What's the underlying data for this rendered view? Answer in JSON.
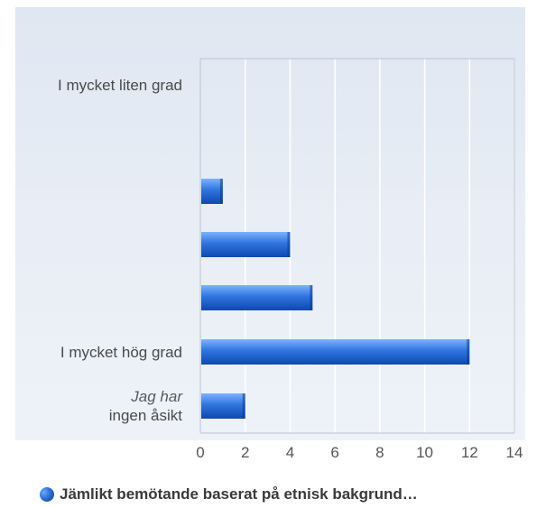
{
  "chart_data": {
    "type": "bar",
    "orientation": "horizontal",
    "categories": [
      "I mycket liten grad",
      "",
      "",
      "",
      "I mycket hög grad",
      "Jag har ingen åsikt"
    ],
    "category_lines": [
      [
        "I mycket liten grad"
      ],
      [],
      [],
      [],
      [
        "I mycket hög grad"
      ],
      [
        "Jag har",
        "ingen åsikt"
      ]
    ],
    "series": [
      {
        "name": "Jämlikt bemötande baserat på etnisk bakgrund…",
        "values": [
          0,
          1,
          4,
          5,
          12,
          2
        ]
      }
    ],
    "xlim": [
      0,
      14
    ],
    "xticks": [
      "0",
      "2",
      "4",
      "6",
      "8",
      "10",
      "12",
      "14"
    ],
    "grid": true,
    "legend": "bottom",
    "colors": {
      "bar_dark": "#0f47b0",
      "bar_mid": "#2f74de",
      "bar_light": "#7db3ff",
      "grid": "#ffffff",
      "axis": "#b9c3d1"
    }
  }
}
